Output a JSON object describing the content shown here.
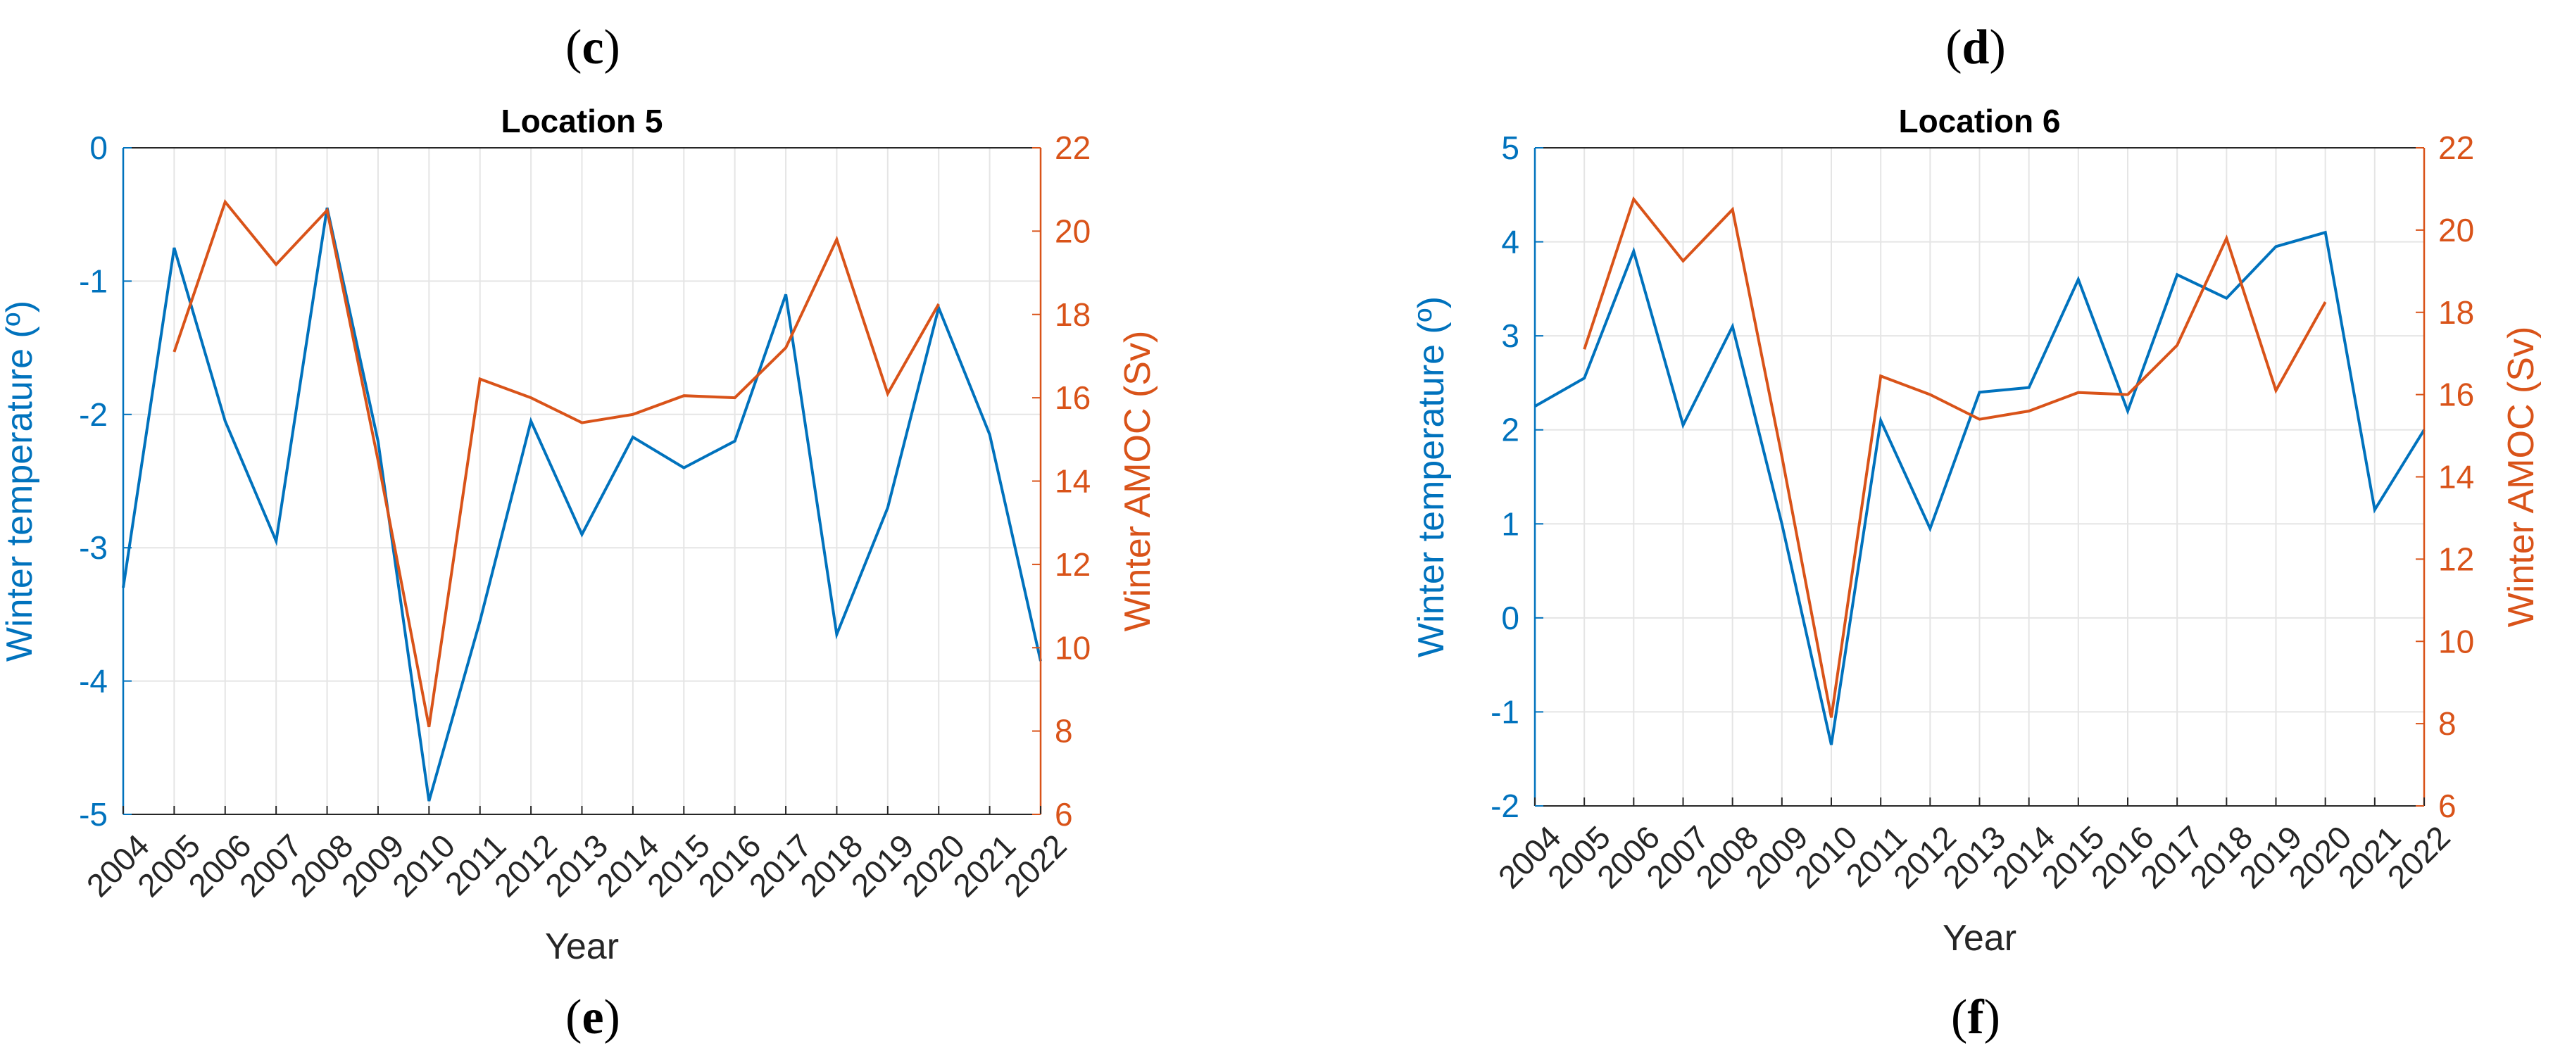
{
  "panel_labels": {
    "top_left": "c",
    "top_right": "d",
    "bottom_left": "e",
    "bottom_right": "f"
  },
  "colors": {
    "temperature": "#0072BD",
    "amoc": "#D95319",
    "grid": "#e5e5e5",
    "axis": "#262626"
  },
  "chart_data": [
    {
      "type": "line",
      "title": "Location 5",
      "xlabel": "Year",
      "ylabel_left": "Winter temperature (º)",
      "ylabel_right": "Winter AMOC (Sv)",
      "x_ticks": [
        "2004",
        "2005",
        "2006",
        "2007",
        "2008",
        "2009",
        "2010",
        "2011",
        "2012",
        "2013",
        "2014",
        "2015",
        "2016",
        "2017",
        "2018",
        "2019",
        "2020",
        "2021",
        "2022"
      ],
      "ylim_left": [
        -5,
        0
      ],
      "yticks_left": [
        "-5",
        "-4",
        "-3",
        "-2",
        "-1",
        "0"
      ],
      "ylim_right": [
        6,
        22
      ],
      "yticks_right": [
        "6",
        "8",
        "10",
        "12",
        "14",
        "16",
        "18",
        "20",
        "22"
      ],
      "grid": true,
      "series": [
        {
          "name": "Winter temperature",
          "axis": "left",
          "x": [
            2004,
            2005,
            2006,
            2007,
            2008,
            2009,
            2010,
            2011,
            2012,
            2013,
            2014,
            2015,
            2016,
            2017,
            2018,
            2019,
            2020,
            2021,
            2022
          ],
          "values": [
            -3.3,
            -0.75,
            -2.05,
            -2.95,
            -0.45,
            -2.2,
            -4.9,
            -3.55,
            -2.05,
            -2.9,
            -2.17,
            -2.4,
            -2.2,
            -1.1,
            -3.65,
            -2.7,
            -1.2,
            -2.15,
            -3.85
          ]
        },
        {
          "name": "Winter AMOC",
          "axis": "right",
          "x": [
            2005,
            2006,
            2007,
            2008,
            2009,
            2010,
            2011,
            2012,
            2013,
            2014,
            2015,
            2016,
            2017,
            2018,
            2019,
            2020
          ],
          "values": [
            17.1,
            20.7,
            19.2,
            20.5,
            14.5,
            8.1,
            16.45,
            16.0,
            15.4,
            15.6,
            16.05,
            16.0,
            17.2,
            19.8,
            16.1,
            18.25
          ]
        }
      ]
    },
    {
      "type": "line",
      "title": "Location 6",
      "xlabel": "Year",
      "ylabel_left": "Winter temperature (º)",
      "ylabel_right": "Winter AMOC (Sv)",
      "x_ticks": [
        "2004",
        "2005",
        "2006",
        "2007",
        "2008",
        "2009",
        "2010",
        "2011",
        "2012",
        "2013",
        "2014",
        "2015",
        "2016",
        "2017",
        "2018",
        "2019",
        "2020",
        "2021",
        "2022"
      ],
      "ylim_left": [
        -2,
        5
      ],
      "yticks_left": [
        "-2",
        "-1",
        "0",
        "1",
        "2",
        "3",
        "4",
        "5"
      ],
      "ylim_right": [
        6,
        22
      ],
      "yticks_right": [
        "6",
        "8",
        "10",
        "12",
        "14",
        "16",
        "18",
        "20",
        "22"
      ],
      "grid": true,
      "series": [
        {
          "name": "Winter temperature",
          "axis": "left",
          "x": [
            2004,
            2005,
            2006,
            2007,
            2008,
            2009,
            2010,
            2011,
            2012,
            2013,
            2014,
            2015,
            2016,
            2017,
            2018,
            2019,
            2020,
            2021,
            2022
          ],
          "values": [
            2.25,
            2.55,
            3.9,
            2.05,
            3.1,
            1.0,
            -1.35,
            2.1,
            0.95,
            2.4,
            2.45,
            3.6,
            2.2,
            3.65,
            3.4,
            3.95,
            4.1,
            1.15,
            2.0
          ]
        },
        {
          "name": "Winter AMOC",
          "axis": "right",
          "x": [
            2005,
            2006,
            2007,
            2008,
            2009,
            2010,
            2011,
            2012,
            2013,
            2014,
            2015,
            2016,
            2017,
            2018,
            2019,
            2020
          ],
          "values": [
            17.1,
            20.75,
            19.25,
            20.5,
            14.5,
            8.15,
            16.45,
            16.0,
            15.4,
            15.6,
            16.05,
            16.0,
            17.2,
            19.8,
            16.1,
            18.25
          ]
        }
      ]
    }
  ]
}
